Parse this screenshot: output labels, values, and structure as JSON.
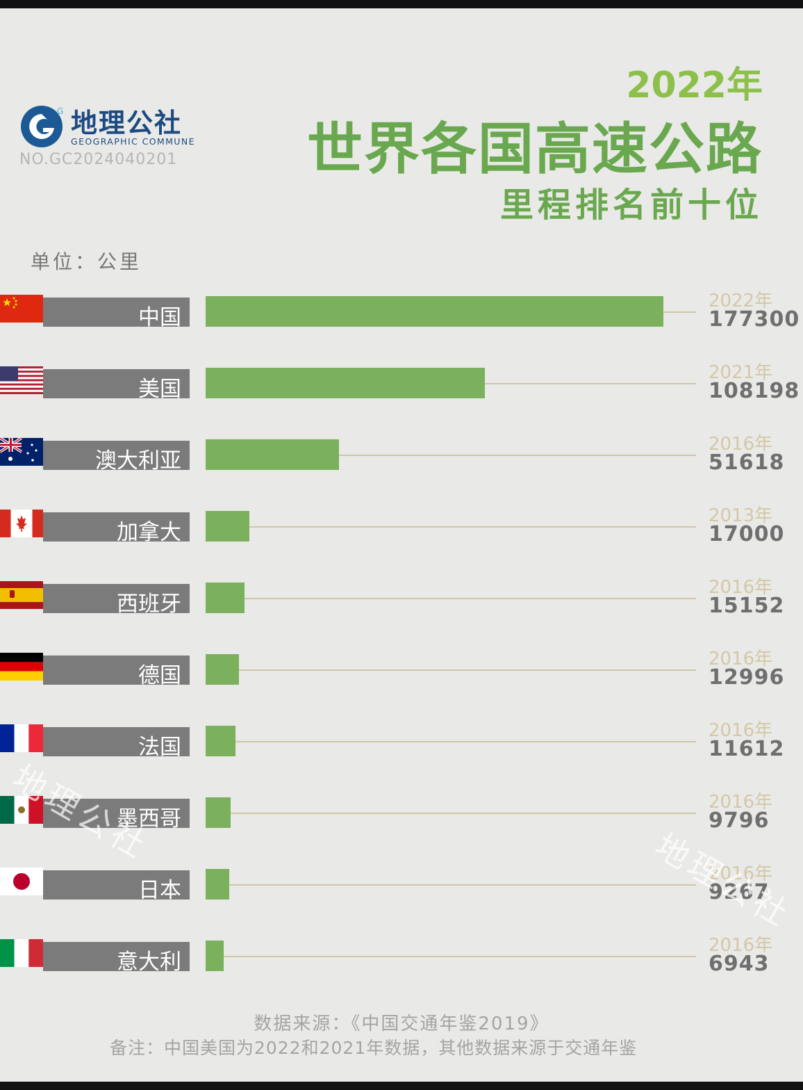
{
  "brand": {
    "name_cn": "地理公社",
    "name_en": "GEOGRAPHIC COMMUNE",
    "serial": "NO.GC2024040201",
    "logo_letter": "G"
  },
  "title": {
    "year": "2022年",
    "main": "世界各国高速公路",
    "sub": "里程排名前十位"
  },
  "unit": "单位：公里",
  "colors": {
    "bar": "#7bb05c",
    "title": "#6aa84f",
    "label_box": "#7b7b7b"
  },
  "chart_data": {
    "type": "bar",
    "orientation": "horizontal",
    "title": "世界各国高速公路里程排名前十位",
    "unit": "公里",
    "xlim": [
      0,
      177300
    ],
    "categories": [
      "中国",
      "美国",
      "澳大利亚",
      "加拿大",
      "西班牙",
      "德国",
      "法国",
      "墨西哥",
      "日本",
      "意大利"
    ],
    "values": [
      177300,
      108198,
      51618,
      17000,
      15152,
      12996,
      11612,
      9796,
      9267,
      6943
    ],
    "years": [
      "2022年",
      "2021年",
      "2016年",
      "2013年",
      "2016年",
      "2016年",
      "2016年",
      "2016年",
      "2016年",
      "2016年"
    ],
    "flags": [
      "china",
      "usa",
      "australia",
      "canada",
      "spain",
      "germany",
      "france",
      "mexico",
      "japan",
      "italy"
    ]
  },
  "footer": {
    "source": "数据来源：《中国交通年鉴2019》",
    "note": "备注：中国美国为2022和2021年数据，其他数据来源于交通年鉴"
  },
  "watermark": "地理公社"
}
